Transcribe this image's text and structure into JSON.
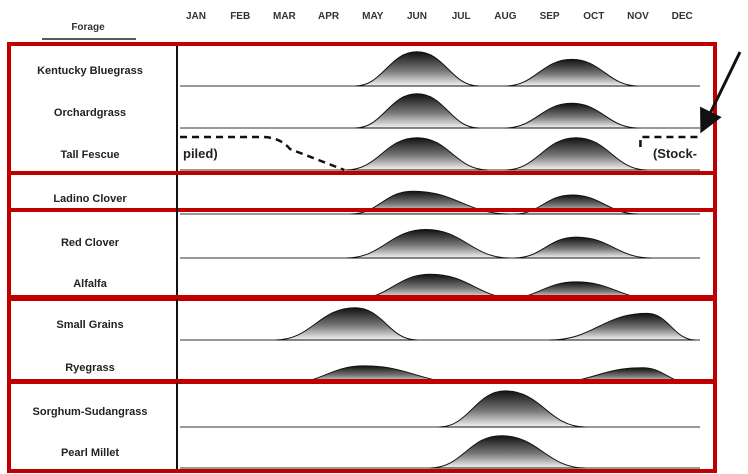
{
  "chart_data": {
    "type": "area",
    "column_header": "Forage",
    "months": [
      "JAN",
      "FEB",
      "MAR",
      "APR",
      "MAY",
      "JUN",
      "JUL",
      "AUG",
      "SEP",
      "OCT",
      "NOV",
      "DEC"
    ],
    "groups": [
      {
        "rows": [
          {
            "name": "Kentucky Bluegrass",
            "peaks": [
              {
                "start": 3.6,
                "center": 5.0,
                "end": 6.4,
                "height": 0.9
              },
              {
                "start": 7.0,
                "center": 8.5,
                "end": 10.0,
                "height": 0.7
              }
            ]
          },
          {
            "name": "Orchardgrass",
            "peaks": [
              {
                "start": 3.6,
                "center": 5.0,
                "end": 6.4,
                "height": 0.9
              },
              {
                "start": 7.0,
                "center": 8.5,
                "end": 10.0,
                "height": 0.65
              }
            ]
          },
          {
            "name": "Tall Fescue",
            "peaks": [
              {
                "start": 3.4,
                "center": 5.0,
                "end": 6.6,
                "height": 0.85
              },
              {
                "start": 7.0,
                "center": 8.6,
                "end": 10.2,
                "height": 0.85
              }
            ],
            "stockpiled": {
              "left_text": "piled)",
              "right_text": "(Stock-",
              "left_end_month": 3.4,
              "right_start_month": 10.1
            }
          }
        ]
      },
      {
        "rows": [
          {
            "name": "Ladino Clover",
            "peaks": [
              {
                "start": 3.5,
                "center": 4.9,
                "end": 7.1,
                "height": 0.6
              },
              {
                "start": 7.2,
                "center": 8.5,
                "end": 10.0,
                "height": 0.5
              }
            ]
          },
          {
            "name": "Red Clover",
            "peaks": [
              {
                "start": 3.4,
                "center": 5.2,
                "end": 7.1,
                "height": 0.75
              },
              {
                "start": 7.2,
                "center": 8.6,
                "end": 10.3,
                "height": 0.55
              }
            ]
          },
          {
            "name": "Alfalfa",
            "peaks": [
              {
                "start": 3.6,
                "center": 5.3,
                "end": 7.3,
                "height": 0.65
              },
              {
                "start": 7.0,
                "center": 8.6,
                "end": 10.4,
                "height": 0.45
              }
            ]
          }
        ]
      },
      {
        "rows": [
          {
            "name": "Small Grains",
            "peaks": [
              {
                "start": 1.8,
                "center": 3.6,
                "end": 5.0,
                "height": 0.85
              },
              {
                "start": 8.0,
                "center": 10.2,
                "end": 11.3,
                "height": 0.7
              }
            ]
          },
          {
            "name": "Ryegrass",
            "peaks": [
              {
                "start": 2.1,
                "center": 3.8,
                "end": 6.1,
                "height": 0.45
              },
              {
                "start": 8.0,
                "center": 10.1,
                "end": 11.2,
                "height": 0.4
              }
            ]
          }
        ]
      },
      {
        "rows": [
          {
            "name": "Sorghum-Sudangrass",
            "peaks": [
              {
                "start": 5.5,
                "center": 7.0,
                "end": 8.8,
                "height": 0.95
              }
            ]
          },
          {
            "name": "Pearl Millet",
            "peaks": [
              {
                "start": 5.3,
                "center": 6.9,
                "end": 8.8,
                "height": 0.85
              }
            ]
          }
        ]
      }
    ],
    "annotation": "arrow pointing to the Tall Fescue stockpiled line",
    "frame_color": "#c00000"
  }
}
